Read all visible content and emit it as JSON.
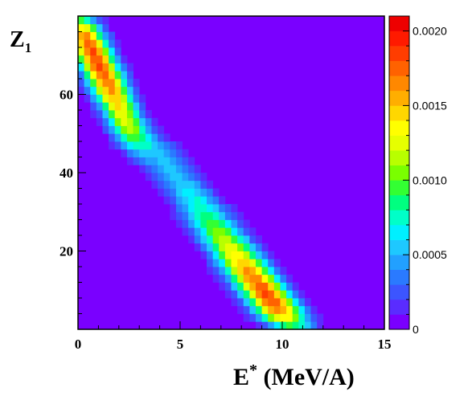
{
  "chart_data": {
    "type": "heatmap",
    "title": "",
    "xlabel": {
      "main": "E",
      "superscript": "*",
      "rest": " (MeV/A)"
    },
    "ylabel": {
      "main": "Z",
      "subscript": "1"
    },
    "xlim": [
      0,
      15
    ],
    "ylim": [
      0,
      80
    ],
    "x_ticks": [
      "0",
      "5",
      "10",
      "15"
    ],
    "x_tick_values": [
      0,
      5,
      10,
      15
    ],
    "y_ticks": [
      "20",
      "40",
      "60"
    ],
    "y_tick_values": [
      20,
      40,
      60
    ],
    "colorbar": {
      "min": 0,
      "max": 0.0021,
      "tick_labels": [
        "0",
        "0.0005",
        "0.0010",
        "0.0015",
        "0.0020"
      ],
      "tick_values": [
        0,
        0.0005,
        0.001,
        0.0015,
        0.002
      ],
      "palette": [
        "#7a00ff",
        "#5a2cff",
        "#3c55ff",
        "#2a7aff",
        "#22a0ff",
        "#1ec8ff",
        "#00f0ff",
        "#00ffc8",
        "#00ff80",
        "#33ff33",
        "#7aff00",
        "#b8ff00",
        "#e6ff00",
        "#ffff00",
        "#ffd700",
        "#ffae00",
        "#ff8800",
        "#ff6200",
        "#ff3d00",
        "#ff1a00",
        "#ee0000"
      ]
    },
    "background_color": "#7a00ff",
    "bins": {
      "x_width": 0.3,
      "y_width": 2
    },
    "components": [
      {
        "name": "",
        "description": "high-Z ridge",
        "x0": 0.8,
        "y0": 70,
        "slope_dx_dz": -0.09,
        "peak": 0.00205,
        "z_range": [
          46,
          80
        ],
        "sigma_x": 0.9
      },
      {
        "name": "",
        "description": "low-Z ridge",
        "x0": 9.8,
        "y0": 5,
        "slope_dx_dz": -0.145,
        "peak": 0.0021,
        "z_range": [
          1,
          50
        ],
        "sigma_x": 1.15
      }
    ]
  }
}
